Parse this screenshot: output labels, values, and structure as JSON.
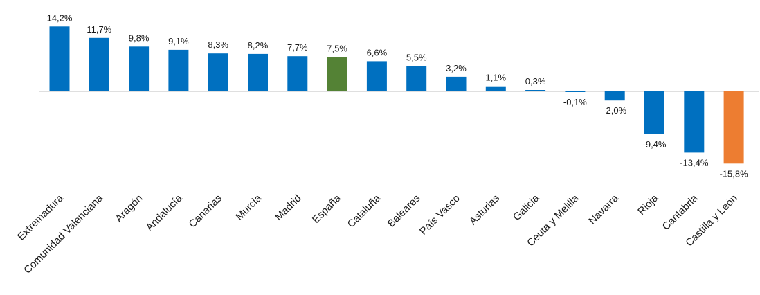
{
  "chart_data": {
    "type": "bar",
    "title": "",
    "xlabel": "",
    "ylabel": "",
    "ylim": [
      -17,
      16
    ],
    "grid": false,
    "legend": "none",
    "categories": [
      "Extremadura",
      "Comunidad Valenciana",
      "Aragón",
      "Andalucía",
      "Canarias",
      "Murcia",
      "Madrid",
      "España",
      "Cataluña",
      "Baleares",
      "País Vasco",
      "Asturias",
      "Galicia",
      "Ceuta y Melilla",
      "Navarra",
      "Rioja",
      "Cantabria",
      "Castilla y León"
    ],
    "values": [
      14.2,
      11.7,
      9.8,
      9.1,
      8.3,
      8.2,
      7.7,
      7.5,
      6.6,
      5.5,
      3.2,
      1.1,
      0.3,
      -0.1,
      -2.0,
      -9.4,
      -13.4,
      -15.8
    ],
    "labels": [
      "14,2%",
      "11,7%",
      "9,8%",
      "9,1%",
      "8,3%",
      "8,2%",
      "7,7%",
      "7,5%",
      "6,6%",
      "5,5%",
      "3,2%",
      "1,1%",
      "0,3%",
      "-0,1%",
      "-2,0%",
      "-9,4%",
      "-13,4%",
      "-15,8%"
    ],
    "colors": {
      "default": "#0070c0",
      "highlight_espana": "#548235",
      "highlight_castilla": "#ed7d31",
      "axis": "#bfbfbf"
    },
    "bar_colors": [
      "#0070c0",
      "#0070c0",
      "#0070c0",
      "#0070c0",
      "#0070c0",
      "#0070c0",
      "#0070c0",
      "#548235",
      "#0070c0",
      "#0070c0",
      "#0070c0",
      "#0070c0",
      "#0070c0",
      "#0070c0",
      "#0070c0",
      "#0070c0",
      "#0070c0",
      "#ed7d31"
    ]
  }
}
